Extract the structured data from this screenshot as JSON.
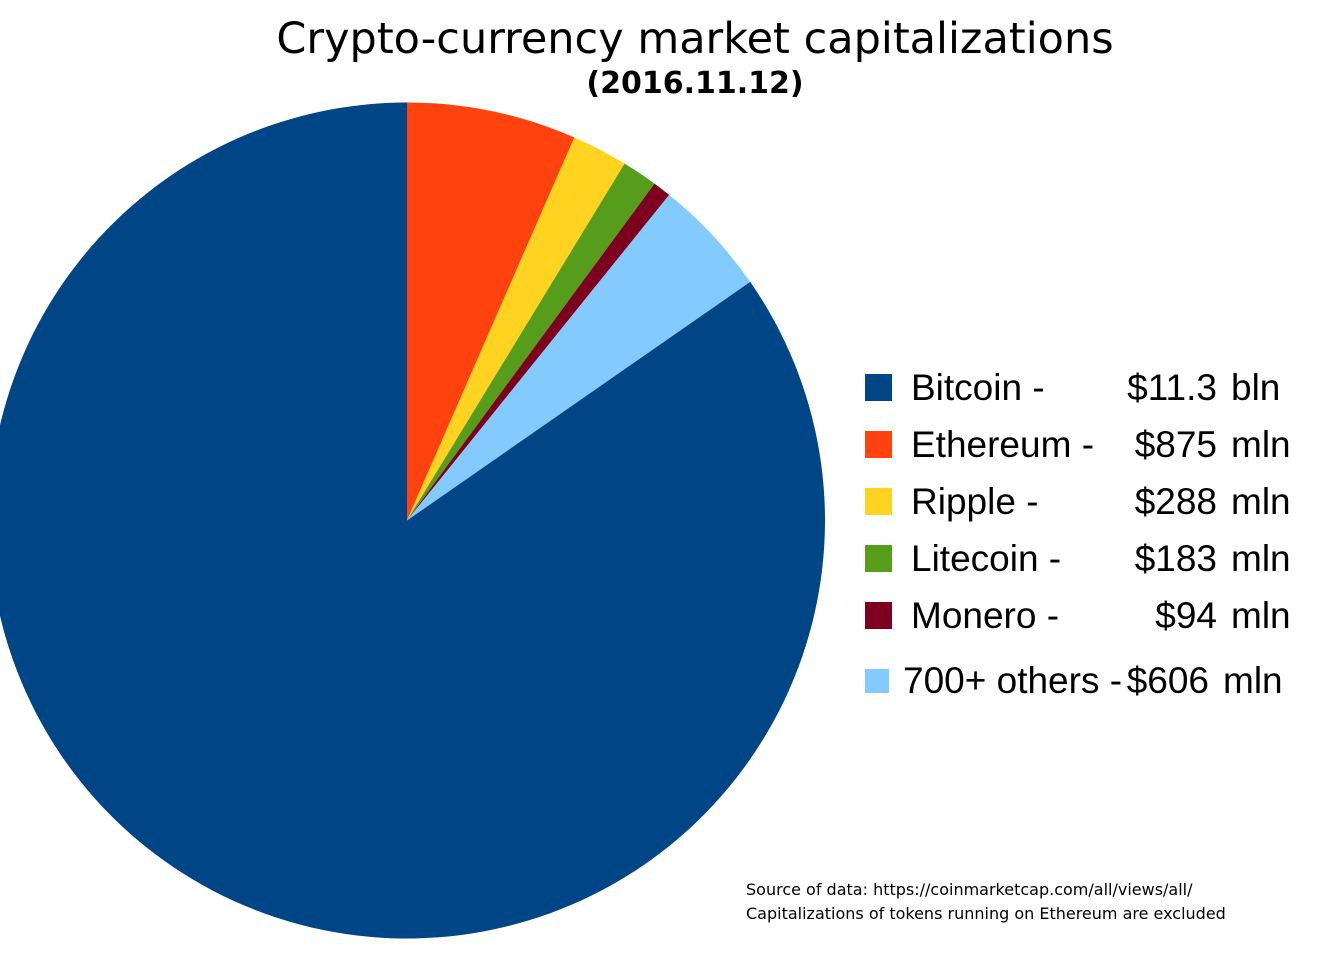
{
  "title": "Crypto-currency market capitalizations",
  "subtitle": "(2016.11.12)",
  "legend": {
    "rows": [
      {
        "label": "Bitcoin -",
        "value": "$11.3",
        "unit": "bln",
        "color": "#004586"
      },
      {
        "label": "Ethereum -",
        "value": "$875",
        "unit": "mln",
        "color": "#FF420E"
      },
      {
        "label": "Ripple -",
        "value": "$288",
        "unit": "mln",
        "color": "#FFD320"
      },
      {
        "label": "Litecoin -",
        "value": "$183",
        "unit": "mln",
        "color": "#579D1C"
      },
      {
        "label": "Monero -",
        "value": "$94",
        "unit": "mln",
        "color": "#7E0021"
      },
      {
        "label": "700+ others -",
        "value": "$606",
        "unit": "mln",
        "color": "#83CAFF"
      }
    ]
  },
  "source": {
    "line1": "Source of data: https://coinmarketcap.com/all/views/all/",
    "line2": "Capitalizations of tokens running on Ethereum are excluded"
  },
  "chart_data": {
    "type": "pie",
    "title": "Crypto-currency market capitalizations",
    "subtitle": "(2016.11.12)",
    "value_unit": "USD millions",
    "slices": [
      {
        "name": "Bitcoin",
        "value_mln": 11300,
        "display": "$11.3 bln",
        "color": "#004586"
      },
      {
        "name": "Ethereum",
        "value_mln": 875,
        "display": "$875 mln",
        "color": "#FF420E"
      },
      {
        "name": "Ripple",
        "value_mln": 288,
        "display": "$288 mln",
        "color": "#FFD320"
      },
      {
        "name": "Litecoin",
        "value_mln": 183,
        "display": "$183 mln",
        "color": "#579D1C"
      },
      {
        "name": "Monero",
        "value_mln": 94,
        "display": "$94 mln",
        "color": "#7E0021"
      },
      {
        "name": "700+ others",
        "value_mln": 606,
        "display": "$606 mln",
        "color": "#83CAFF"
      }
    ],
    "draw_order_clockwise_from_top": [
      "Ethereum",
      "Ripple",
      "Litecoin",
      "Monero",
      "700+ others",
      "Bitcoin"
    ],
    "legend_position": "right",
    "background": "#ffffff"
  }
}
